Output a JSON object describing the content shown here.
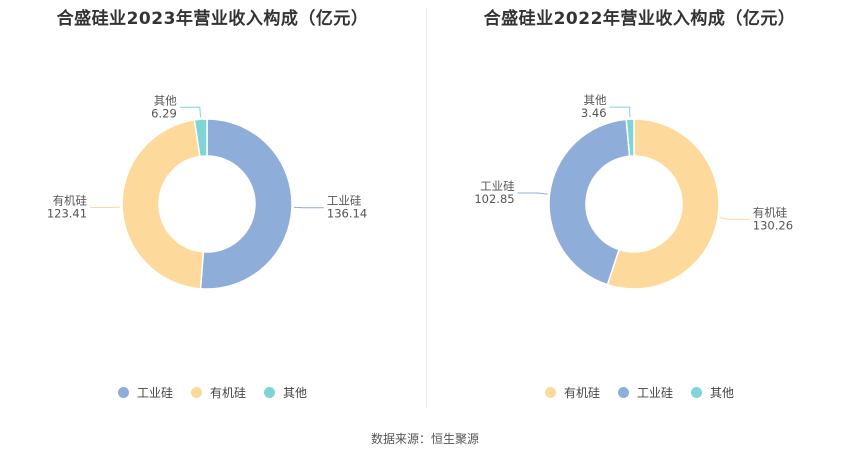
{
  "source": "数据来源：恒生聚源",
  "colors": {
    "工业硅": "#8fadd9",
    "有机硅": "#fdd99b",
    "其他": "#7fd4d6"
  },
  "chart_data": [
    {
      "type": "pie",
      "title": "合盛硅业2023年营业收入构成（亿元）",
      "categories": [
        "工业硅",
        "有机硅",
        "其他"
      ],
      "values": [
        136.14,
        123.41,
        6.29
      ],
      "value_labels": [
        "136.14",
        "123.41",
        "6.29"
      ],
      "legend": [
        "工业硅",
        "有机硅",
        "其他"
      ],
      "legend_position": "bottom"
    },
    {
      "type": "pie",
      "title": "合盛硅业2022年营业收入构成（亿元）",
      "categories": [
        "有机硅",
        "工业硅",
        "其他"
      ],
      "values": [
        130.26,
        102.85,
        3.46
      ],
      "value_labels": [
        "130.26",
        "102.85",
        "3.46"
      ],
      "legend": [
        "有机硅",
        "工业硅",
        "其他"
      ],
      "legend_position": "bottom"
    }
  ]
}
